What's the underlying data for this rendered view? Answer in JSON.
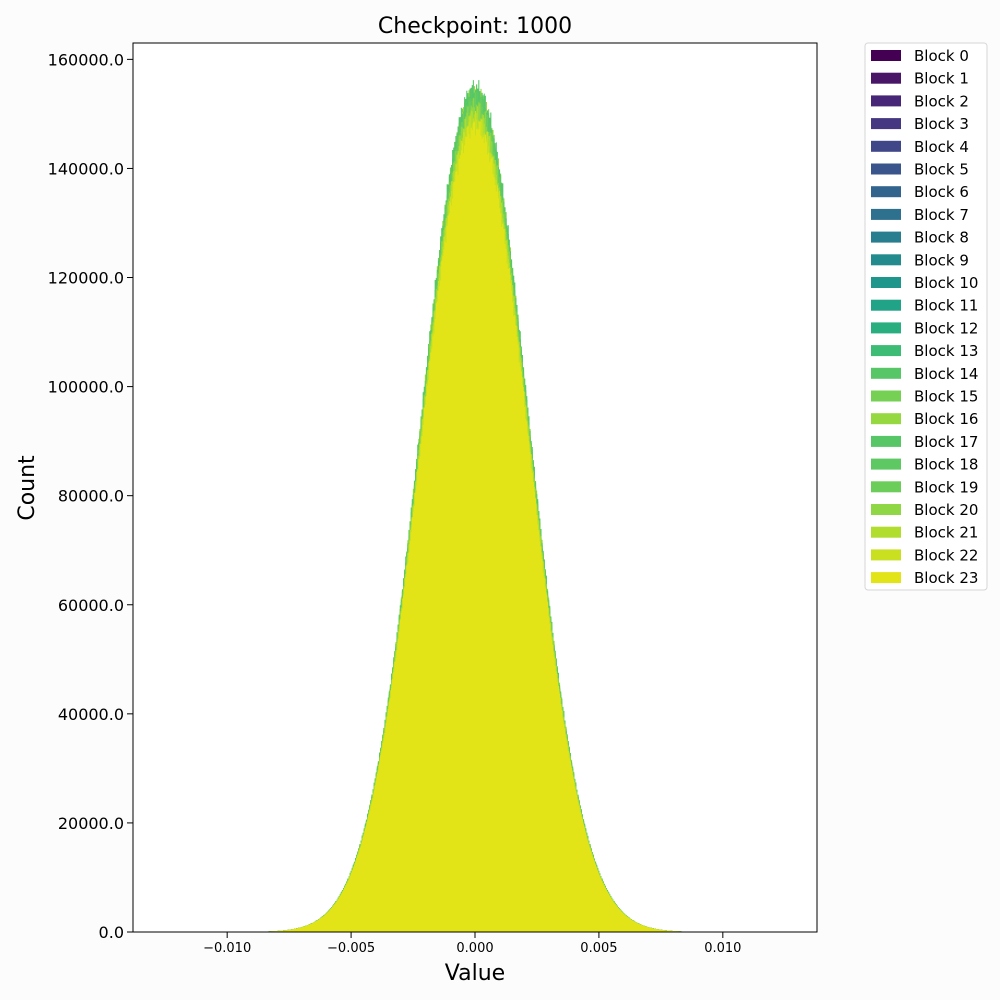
{
  "chart_data": {
    "type": "histogram",
    "title": "Checkpoint: 1000",
    "xlabel": "Value",
    "ylabel": "Count",
    "xlim": [
      -0.0138,
      0.0138
    ],
    "ylim": [
      0,
      163000
    ],
    "xticks": [
      -0.01,
      -0.005,
      0.0,
      0.005,
      0.01
    ],
    "xtick_labels": [
      "−0.010",
      "−0.005",
      "0.000",
      "0.005",
      "0.010"
    ],
    "yticks": [
      0,
      20000,
      40000,
      60000,
      80000,
      100000,
      120000,
      140000,
      160000
    ],
    "ytick_labels": [
      "0.0",
      "20000.0",
      "40000.0",
      "60000.0",
      "80000.0",
      "100000.0",
      "120000.0",
      "140000.0",
      "160000.0"
    ],
    "distribution": "approximately normal, centered at 0",
    "std_approx": 0.00218,
    "x_extent": [
      -0.0088,
      0.0088
    ],
    "bins_approx": 400,
    "series": [
      {
        "name": "Block 0",
        "color": "#440154",
        "peak": 151000
      },
      {
        "name": "Block 1",
        "color": "#481567",
        "peak": 151000
      },
      {
        "name": "Block 2",
        "color": "#482677",
        "peak": 151000
      },
      {
        "name": "Block 3",
        "color": "#453781",
        "peak": 151000
      },
      {
        "name": "Block 4",
        "color": "#3f4788",
        "peak": 151000
      },
      {
        "name": "Block 5",
        "color": "#39558c",
        "peak": 151000
      },
      {
        "name": "Block 6",
        "color": "#32648e",
        "peak": 151000
      },
      {
        "name": "Block 7",
        "color": "#2d718e",
        "peak": 151000
      },
      {
        "name": "Block 8",
        "color": "#287d8e",
        "peak": 151000
      },
      {
        "name": "Block 9",
        "color": "#238a8d",
        "peak": 151000
      },
      {
        "name": "Block 10",
        "color": "#1f968b",
        "peak": 151000
      },
      {
        "name": "Block 11",
        "color": "#20a386",
        "peak": 151000
      },
      {
        "name": "Block 12",
        "color": "#29af7f",
        "peak": 151500
      },
      {
        "name": "Block 13",
        "color": "#3cbc75",
        "peak": 152000
      },
      {
        "name": "Block 14",
        "color": "#56c667",
        "peak": 153000
      },
      {
        "name": "Block 15",
        "color": "#75d054",
        "peak": 154000
      },
      {
        "name": "Block 16",
        "color": "#95d840",
        "peak": 154000
      },
      {
        "name": "Block 17",
        "color": "#56c667",
        "peak": 155000
      },
      {
        "name": "Block 18",
        "color": "#5ec962",
        "peak": 153500
      },
      {
        "name": "Block 19",
        "color": "#6ccd5a",
        "peak": 152500
      },
      {
        "name": "Block 20",
        "color": "#8fd744",
        "peak": 151500
      },
      {
        "name": "Block 21",
        "color": "#b1dd2f",
        "peak": 150000
      },
      {
        "name": "Block 22",
        "color": "#c8e020",
        "peak": 149000
      },
      {
        "name": "Block 23",
        "color": "#e3e418",
        "peak": 147500
      }
    ],
    "legend_position": "outside-right-top"
  }
}
